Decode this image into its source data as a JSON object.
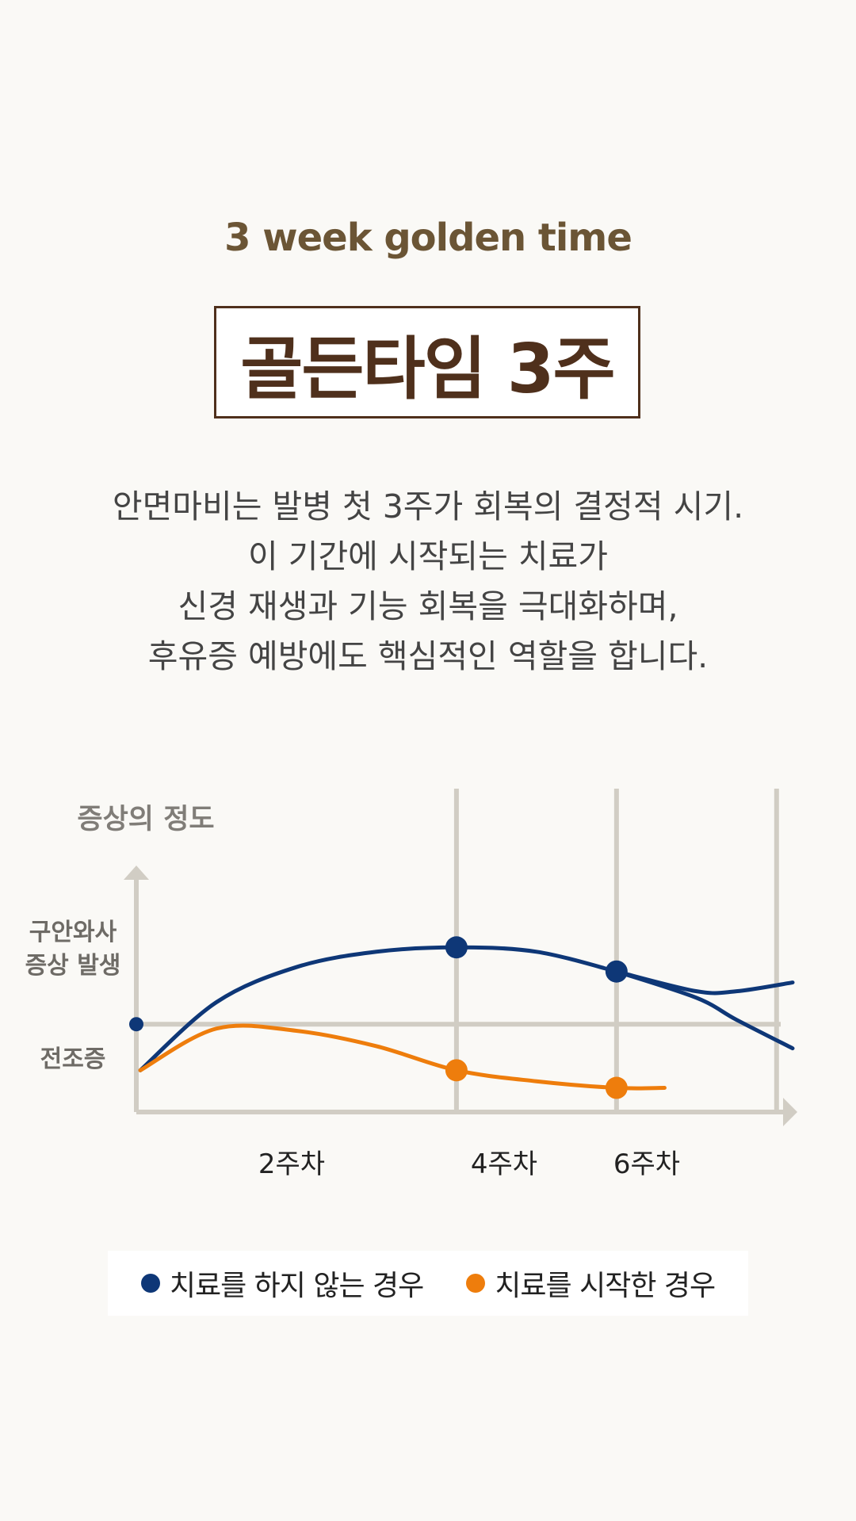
{
  "header": {
    "subtitle": "3 week golden time",
    "title": "골든타임 3주"
  },
  "description": [
    "안면마비는 발병 첫 3주가 회복의 결정적 시기.",
    "이 기간에 시작되는 치료가",
    "신경 재생과 기능 회복을 극대화하며,",
    "후유증 예방에도 핵심적인 역할을 합니다."
  ],
  "colors": {
    "navy": "#0e3777",
    "orange": "#ee7d0c",
    "grid": "#d1cdc4",
    "title_brown": "#4f301c",
    "subtitle_brown": "#6b5535"
  },
  "chart_data": {
    "type": "line",
    "ylabel": "증상의 정도",
    "y_level_labels": [
      "구안와사\n증상 발생",
      "전조증"
    ],
    "x_tick_labels": [
      "2주차",
      "4주차",
      "6주차"
    ],
    "x_ticks": [
      2,
      4,
      6
    ],
    "xlim": [
      0,
      8.2
    ],
    "ylim": [
      0,
      10
    ],
    "grid": "vertical lines at weeks 4, 6 and 8; horizontal line at symptom onset level",
    "onset_level": 4.0,
    "series": [
      {
        "name": "치료를 하지 않는 경우",
        "color": "#0e3777",
        "x": [
          0.05,
          1.0,
          2.0,
          3.0,
          4.0,
          5.0,
          6.0
        ],
        "y": [
          1.9,
          5.0,
          6.6,
          7.3,
          7.5,
          7.3,
          6.4
        ],
        "markers": [
          [
            4.0,
            7.5
          ],
          [
            6.0,
            6.4
          ]
        ],
        "branches": [
          {
            "x": [
              6.0,
              7.0,
              7.5,
              8.2
            ],
            "y": [
              6.4,
              5.5,
              5.5,
              5.9
            ]
          },
          {
            "x": [
              6.0,
              7.0,
              7.5,
              8.2
            ],
            "y": [
              6.4,
              5.2,
              4.2,
              2.9
            ]
          }
        ]
      },
      {
        "name": "치료를 시작한 경우",
        "color": "#ee7d0c",
        "x": [
          0.05,
          1.0,
          2.0,
          3.0,
          4.0,
          5.0,
          6.0,
          6.6
        ],
        "y": [
          1.9,
          3.8,
          3.7,
          3.0,
          1.9,
          1.4,
          1.1,
          1.1
        ],
        "markers": [
          [
            4.0,
            1.9
          ],
          [
            6.0,
            1.1
          ]
        ]
      }
    ]
  },
  "legend": {
    "items": [
      {
        "label": "치료를 하지 않는 경우",
        "color": "#0e3777"
      },
      {
        "label": "치료를 시작한 경우",
        "color": "#ee7d0c"
      }
    ]
  }
}
